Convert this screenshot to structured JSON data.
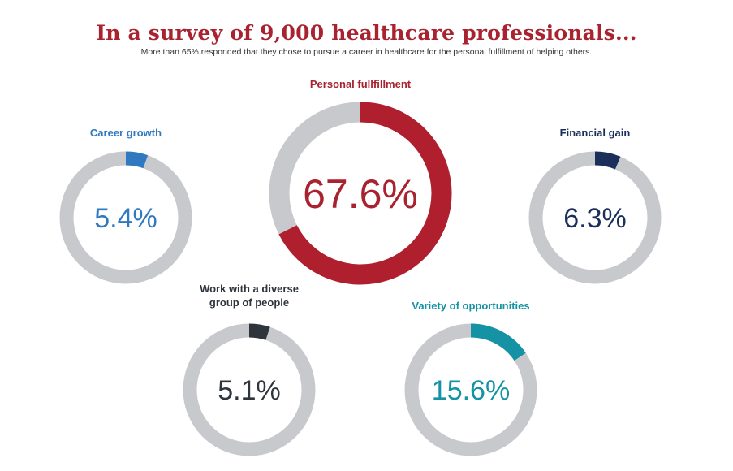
{
  "header": {
    "title": "In a survey of 9,000 healthcare professionals...",
    "subtitle": "More than 65% responded that they chose to pursue a career in healthcare for the personal fulfillment of helping others."
  },
  "colors": {
    "track": "#c8c9cc",
    "red": "#b01f2e",
    "blue": "#2f79c0",
    "navy": "#1b2f5b",
    "charcoal": "#2f353d",
    "teal": "#1592a4",
    "title": "#a8232f"
  },
  "chart_data": {
    "type": "pie",
    "subtype": "donut",
    "series": [
      {
        "name": "Personal fullfillment",
        "value": 67.6,
        "label": "67.6%",
        "color": "#b01f2e",
        "label_color": "#a8232f"
      },
      {
        "name": "Career growth",
        "value": 5.4,
        "label": "5.4%",
        "color": "#2f79c0",
        "label_color": "#2f79c0"
      },
      {
        "name": "Financial gain",
        "value": 6.3,
        "label": "6.3%",
        "color": "#1b2f5b",
        "label_color": "#1b2f5b"
      },
      {
        "name": "Work with a diverse group of people",
        "value": 5.1,
        "label": "5.1%",
        "color": "#2f353d",
        "label_color": "#2f353d"
      },
      {
        "name": "Variety of opportunities",
        "value": 15.6,
        "label": "15.6%",
        "color": "#1592a4",
        "label_color": "#1592a4"
      }
    ]
  }
}
